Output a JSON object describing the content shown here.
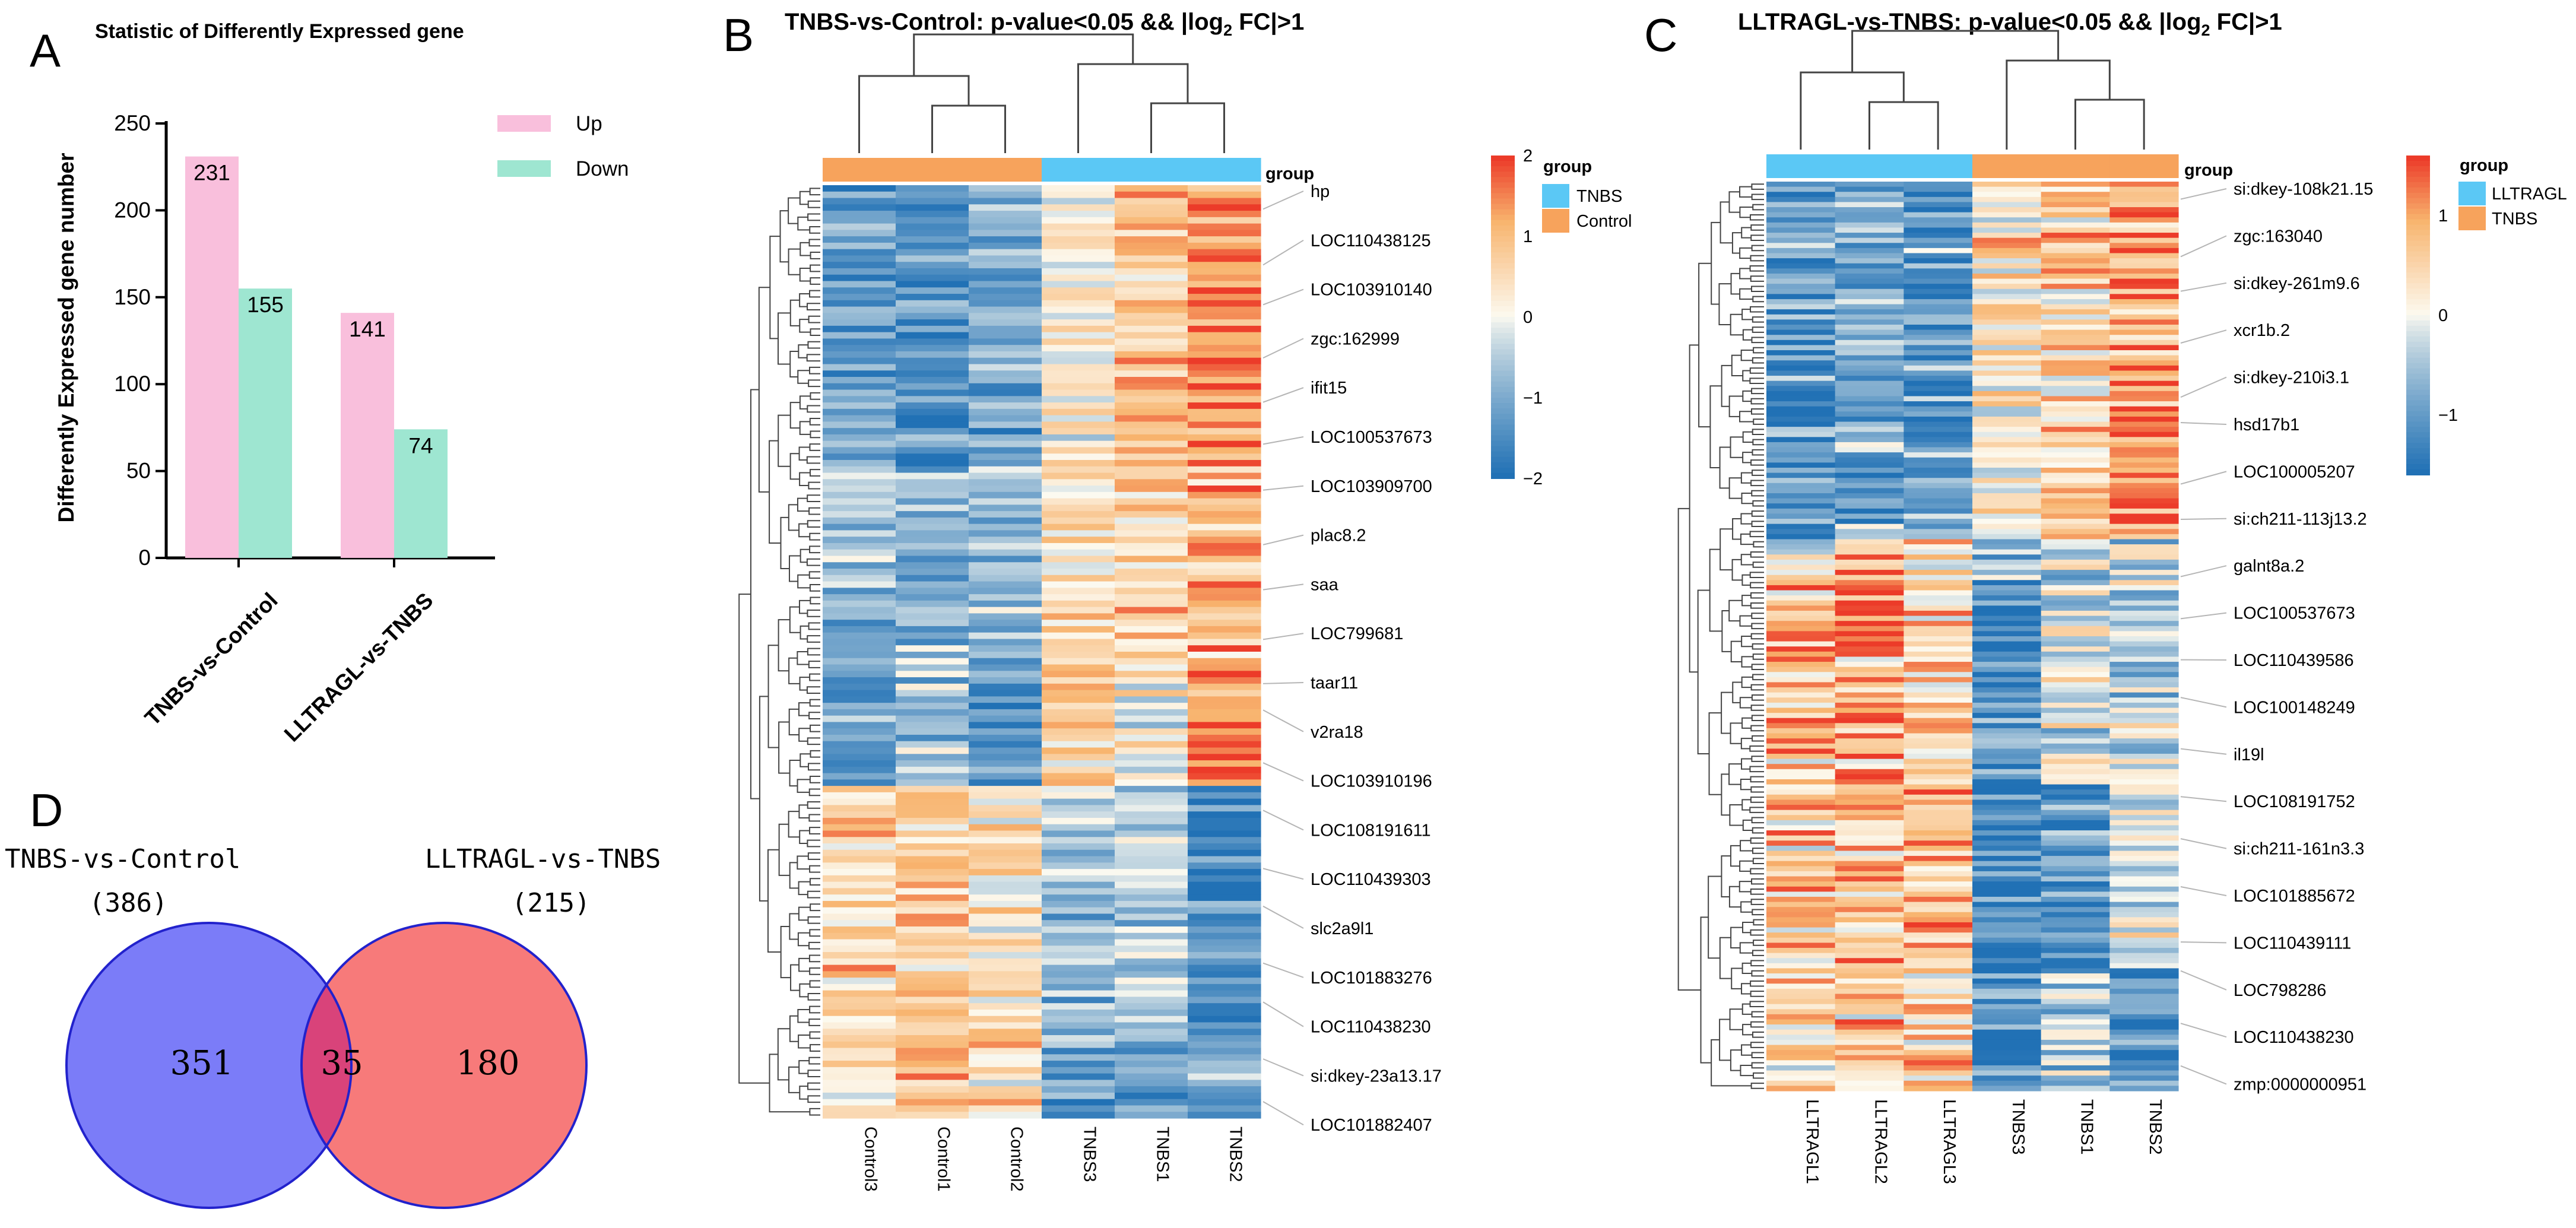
{
  "colors": {
    "up": "#f9bfdc",
    "down": "#9ee6d1",
    "tnbs_group": "#5bc8f5",
    "control_group": "#f7a35c",
    "venn_left": "#7b7cf8",
    "venn_right": "#f77a7a",
    "venn_overlap": "#d9437a",
    "venn_stroke": "#2222cc",
    "tree": "#444444"
  },
  "panels": {
    "a_letter": "A",
    "b_letter": "B",
    "c_letter": "C",
    "d_letter": "D"
  },
  "chart_data": [
    {
      "panel": "A",
      "type": "bar",
      "title": "Statistic of Differently Expressed gene",
      "ylabel": "Differently Expressed gene number",
      "xlabel": "",
      "categories": [
        "TNBS-vs-Control",
        "LLTRAGL-vs-TNBS"
      ],
      "series": [
        {
          "name": "Up",
          "values": [
            231,
            141
          ]
        },
        {
          "name": "Down",
          "values": [
            155,
            74
          ]
        }
      ],
      "ylim": [
        0,
        250
      ],
      "yticks": [
        0,
        50,
        100,
        150,
        200,
        250
      ],
      "legend": "top-right"
    },
    {
      "panel": "B",
      "type": "heatmap",
      "title": "TNBS-vs-Control: p-value<0.05 && |log",
      "title_sub": "2",
      "title_end": " FC|>1",
      "samples": [
        "Control3",
        "Control1",
        "Control2",
        "TNBS3",
        "TNBS1",
        "TNBS2"
      ],
      "sample_groups": [
        "Control",
        "Control",
        "Control",
        "TNBS",
        "TNBS",
        "TNBS"
      ],
      "group_label": "group",
      "legend_title": "group",
      "legend_items": [
        "TNBS",
        "Control"
      ],
      "colorbar_ticks": [
        2,
        1,
        0,
        -1,
        -2
      ],
      "colorbar_labels": [
        "2",
        "1",
        "0",
        "−1",
        "−2"
      ],
      "colorbar_range": [
        -2,
        2
      ],
      "genes": [
        "hp",
        "LOC110438125",
        "LOC103910140",
        "zgc:162999",
        "ifit15",
        "LOC100537673",
        "LOC103909700",
        "plac8.2",
        "saa",
        "LOC799681",
        "taar11",
        "v2ra18",
        "LOC103910196",
        "LOC108191611",
        "LOC110439303",
        "slc2a9l1",
        "LOC101883276",
        "LOC110438230",
        "si:dkey-23a13.17",
        "LOC101882407"
      ],
      "cluster_profile": [
        {
          "rows": 44,
          "means": [
            -1.2,
            -1.5,
            -1.0,
            0.1,
            0.8,
            1.3
          ]
        },
        {
          "rows": 30,
          "means": [
            -0.8,
            -0.9,
            -0.7,
            0.3,
            0.6,
            1.0
          ]
        },
        {
          "rows": 20,
          "means": [
            -1.0,
            -0.6,
            -1.2,
            0.6,
            0.1,
            1.6
          ]
        },
        {
          "rows": 40,
          "means": [
            0.6,
            0.8,
            0.5,
            -0.9,
            -0.5,
            -1.4
          ]
        },
        {
          "rows": 12,
          "means": [
            0.3,
            1.0,
            0.4,
            -1.3,
            -1.2,
            -0.9
          ]
        }
      ]
    },
    {
      "panel": "C",
      "type": "heatmap",
      "title": "LLTRAGL-vs-TNBS: p-value<0.05 && |log",
      "title_sub": "2",
      "title_end": " FC|>1",
      "samples": [
        "LLTRAGL1",
        "LLTRAGL2",
        "LLTRAGL3",
        "TNBS3",
        "TNBS1",
        "TNBS2"
      ],
      "sample_groups": [
        "LLTRAGL",
        "LLTRAGL",
        "LLTRAGL",
        "TNBS",
        "TNBS",
        "TNBS"
      ],
      "group_label": "group",
      "legend_title": "group",
      "legend_items": [
        "LLTRAGL",
        "TNBS"
      ],
      "colorbar_ticks": [
        1,
        0,
        -1
      ],
      "colorbar_labels": [
        "1",
        "0",
        "−1"
      ],
      "colorbar_range": [
        -1.6,
        1.6
      ],
      "genes": [
        "si:dkey-108k21.15",
        "zgc:163040",
        "si:dkey-261m9.6",
        "xcr1b.2",
        "si:dkey-210i3.1",
        "hsd17b1",
        "LOC100005207",
        "si:ch211-113j13.2",
        "galnt8a.2",
        "LOC100537673",
        "LOC110439586",
        "LOC100148249",
        "il19l",
        "LOC108191752",
        "si:ch211-161n3.3",
        "LOC101885672",
        "LOC110439111",
        "LOC798286",
        "LOC110438230",
        "zmp:0000000951"
      ],
      "cluster_profile": [
        {
          "rows": 70,
          "means": [
            -1.1,
            -0.9,
            -1.0,
            0.3,
            0.6,
            1.1
          ]
        },
        {
          "rows": 8,
          "means": [
            -0.2,
            0.8,
            0.6,
            -0.6,
            -0.3,
            -0.4
          ]
        },
        {
          "rows": 40,
          "means": [
            0.7,
            0.9,
            0.6,
            -1.4,
            -0.2,
            -0.3
          ]
        },
        {
          "rows": 36,
          "means": [
            0.6,
            0.7,
            0.8,
            -1.3,
            -1.2,
            -0.1
          ]
        },
        {
          "rows": 24,
          "means": [
            0.5,
            0.6,
            0.5,
            -1.1,
            -0.5,
            -1.3
          ]
        }
      ]
    },
    {
      "panel": "D",
      "type": "venn",
      "sets": [
        {
          "name": "TNBS-vs-Control",
          "total_label": "(386)",
          "total": 386,
          "only": 351,
          "only_label": "351"
        },
        {
          "name": "LLTRAGL-vs-TNBS",
          "total_label": "(215)",
          "total": 215,
          "only": 180,
          "only_label": "180"
        }
      ],
      "intersection": 35,
      "intersection_label": "35"
    }
  ]
}
